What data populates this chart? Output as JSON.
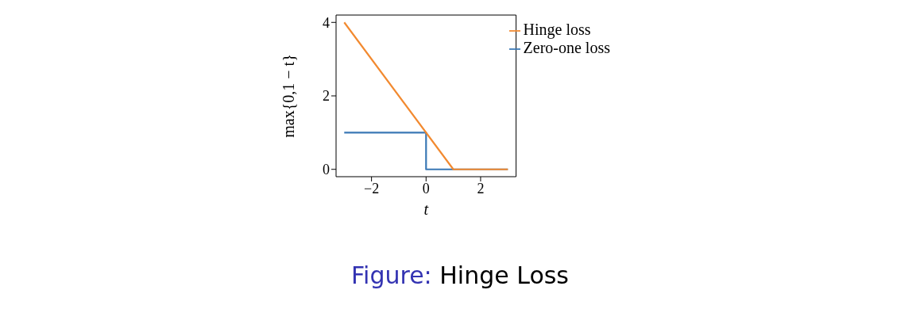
{
  "chart_data": {
    "type": "line",
    "xlabel": "t",
    "ylabel": "max{0,1 − t}",
    "annotations": [
      "Figure: Hinge Loss"
    ],
    "series": [
      {
        "name": "Zero-one loss",
        "color": "#3a78b5",
        "x": [
          -3,
          0,
          0,
          3
        ],
        "values": [
          1,
          1,
          0,
          0
        ]
      },
      {
        "name": "Hinge loss",
        "color": "#f28a30",
        "x": [
          -3,
          1,
          3
        ],
        "values": [
          4,
          0,
          0
        ]
      }
    ],
    "xlim": [
      -3.3,
      3.3
    ],
    "ylim": [
      -0.2,
      4.2
    ],
    "xticks": [
      {
        "value": -2,
        "label": "−2"
      },
      0,
      2
    ],
    "yticks": [
      0,
      2,
      4
    ],
    "legend": "top right",
    "marker": "none",
    "line_style": "solid",
    "grid": false
  }
}
